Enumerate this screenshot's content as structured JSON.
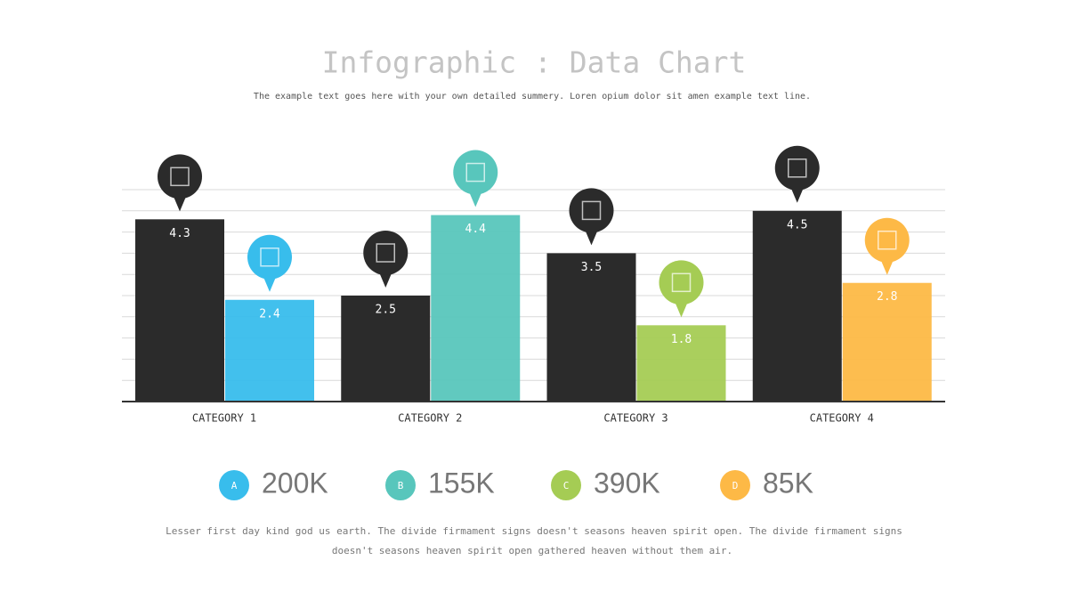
{
  "chart_data": {
    "type": "bar",
    "title": "Infographic : Data Chart",
    "subtitle": "The example text goes here with your own detailed summery. Loren opium dolor sit amen example text line.",
    "categories": [
      "CATEGORY 1",
      "CATEGORY 2",
      "CATEGORY 3",
      "CATEGORY 4"
    ],
    "series": [
      {
        "color": "#2b2b2b",
        "values": [
          4.3,
          2.5,
          3.5,
          4.5
        ]
      },
      {
        "colors": [
          "#38bdec",
          "#58c6bc",
          "#a5cc54",
          "#fdb946"
        ],
        "values": [
          2.4,
          4.4,
          1.8,
          2.8
        ]
      }
    ],
    "ylim": [
      0,
      5
    ],
    "yticks": [
      0,
      0.5,
      1,
      1.5,
      2,
      2.5,
      3,
      3.5,
      4,
      4.5,
      5
    ],
    "grid": true
  },
  "stats": [
    {
      "letter": "A",
      "value": "200K",
      "color": "#38bdec"
    },
    {
      "letter": "B",
      "value": "155K",
      "color": "#58c6bc"
    },
    {
      "letter": "C",
      "value": "390K",
      "color": "#a5cc54"
    },
    {
      "letter": "D",
      "value": "85K",
      "color": "#fdb946"
    }
  ],
  "footer": [
    "Lesser first day kind god us earth. The divide firmament signs doesn't seasons heaven spirit open. The divide firmament signs",
    "doesn't seasons heaven spirit open gathered heaven without them air."
  ]
}
